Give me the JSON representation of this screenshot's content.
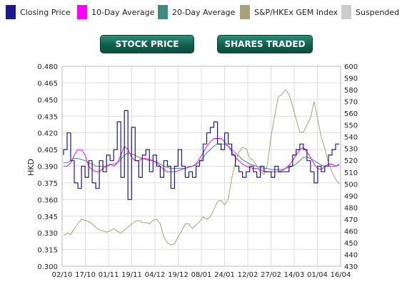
{
  "legend": [
    {
      "label": "Closing Price",
      "color": "#1a1a8c"
    },
    {
      "label": "10-Day Average",
      "color": "#ff00ff"
    },
    {
      "label": "20-Day Average",
      "color": "#3f8a7f"
    },
    {
      "label": "S&P/HKEx GEM Index",
      "color": "#a8a27a"
    },
    {
      "label": "Suspended",
      "color": "#cccccc"
    }
  ],
  "buttons": {
    "stock_price": "STOCK PRICE",
    "shares_traded": "SHARES TRADED"
  },
  "chart_data": {
    "type": "line",
    "ylabel": "HKD",
    "ylim": [
      0.3,
      0.48
    ],
    "y2lim": [
      430,
      600
    ],
    "y_ticks": [
      "0.480",
      "0.465",
      "0.450",
      "0.435",
      "0.420",
      "0.405",
      "0.390",
      "0.375",
      "0.360",
      "0.345",
      "0.330",
      "0.315",
      "0.300"
    ],
    "y2_ticks": [
      "600",
      "590",
      "580",
      "570",
      "560",
      "550",
      "540",
      "530",
      "520",
      "510",
      "500",
      "490",
      "480",
      "470",
      "460",
      "450",
      "440",
      "430"
    ],
    "x_ticks": [
      "02/10",
      "17/10",
      "01/11",
      "19/11",
      "04/12",
      "19/12",
      "08/01",
      "24/01",
      "12/02",
      "27/02",
      "14/03",
      "01/04",
      "16/04"
    ],
    "series": [
      {
        "name": "Closing Price",
        "color": "#1a1a8c",
        "values": [
          0.4,
          0.405,
          0.42,
          0.395,
          0.375,
          0.37,
          0.39,
          0.38,
          0.395,
          0.375,
          0.37,
          0.395,
          0.385,
          0.4,
          0.395,
          0.405,
          0.43,
          0.38,
          0.44,
          0.36,
          0.425,
          0.395,
          0.38,
          0.4,
          0.405,
          0.385,
          0.4,
          0.39,
          0.38,
          0.395,
          0.39,
          0.37,
          0.39,
          0.405,
          0.39,
          0.38,
          0.385,
          0.38,
          0.39,
          0.395,
          0.41,
          0.42,
          0.425,
          0.43,
          0.41,
          0.405,
          0.42,
          0.41,
          0.4,
          0.39,
          0.385,
          0.38,
          0.385,
          0.39,
          0.385,
          0.38,
          0.39,
          0.385,
          0.385,
          0.38,
          0.39,
          0.385,
          0.385,
          0.385,
          0.39,
          0.4,
          0.405,
          0.41,
          0.405,
          0.395,
          0.385,
          0.375,
          0.39,
          0.385,
          0.39,
          0.4,
          0.405,
          0.41
        ]
      },
      {
        "name": "10-Day Average",
        "color": "#ff00ff",
        "values": [
          0.39,
          0.39,
          0.393,
          0.4,
          0.405,
          0.405,
          0.4,
          0.39,
          0.387,
          0.385,
          0.385,
          0.388,
          0.39,
          0.392,
          0.39,
          0.393,
          0.4,
          0.408,
          0.405,
          0.398,
          0.395,
          0.395,
          0.397,
          0.397,
          0.396,
          0.395,
          0.393,
          0.39,
          0.387,
          0.385,
          0.385,
          0.385,
          0.386,
          0.387,
          0.388,
          0.39,
          0.39,
          0.392,
          0.397,
          0.402,
          0.408,
          0.412,
          0.415,
          0.415,
          0.415,
          0.412,
          0.408,
          0.403,
          0.398,
          0.395,
          0.392,
          0.39,
          0.389,
          0.388,
          0.388,
          0.387,
          0.385,
          0.385,
          0.385,
          0.385,
          0.385,
          0.386,
          0.388,
          0.391,
          0.395,
          0.4,
          0.405,
          0.407,
          0.403,
          0.398,
          0.392,
          0.388,
          0.387,
          0.39,
          0.392,
          0.392,
          0.39,
          0.392
        ]
      },
      {
        "name": "20-Day Average",
        "color": "#3f8a7f",
        "values": [
          0.393,
          0.393,
          0.395,
          0.397,
          0.397,
          0.396,
          0.395,
          0.393,
          0.392,
          0.39,
          0.39,
          0.39,
          0.39,
          0.391,
          0.392,
          0.393,
          0.396,
          0.4,
          0.402,
          0.401,
          0.4,
          0.398,
          0.397,
          0.396,
          0.395,
          0.395,
          0.394,
          0.392,
          0.39,
          0.389,
          0.388,
          0.388,
          0.388,
          0.388,
          0.388,
          0.389,
          0.39,
          0.391,
          0.394,
          0.398,
          0.402,
          0.405,
          0.408,
          0.41,
          0.41,
          0.41,
          0.408,
          0.405,
          0.402,
          0.399,
          0.396,
          0.394,
          0.392,
          0.391,
          0.39,
          0.389,
          0.388,
          0.388,
          0.387,
          0.387,
          0.387,
          0.387,
          0.388,
          0.389,
          0.39,
          0.392,
          0.395,
          0.398,
          0.398,
          0.397,
          0.395,
          0.393,
          0.391,
          0.39,
          0.39,
          0.39,
          0.39,
          0.391
        ]
      },
      {
        "name": "S&P/HKEx GEM Index",
        "color": "#a8a27a",
        "axis": "right",
        "values": [
          456,
          458,
          457,
          462,
          466,
          470,
          469,
          468,
          466,
          463,
          461,
          460,
          459,
          460,
          462,
          460,
          458,
          461,
          463,
          466,
          468,
          469,
          467,
          467,
          466,
          469,
          470,
          466,
          455,
          450,
          448,
          449,
          455,
          460,
          466,
          466,
          462,
          465,
          468,
          472,
          470,
          472,
          478,
          485,
          486,
          482,
          487,
          505,
          518,
          527,
          531,
          530,
          522,
          520,
          515,
          510,
          508,
          517,
          541,
          558,
          574,
          576,
          580,
          576,
          566,
          555,
          544,
          544,
          550,
          556,
          570,
          555,
          540,
          530,
          518,
          510,
          504,
          500
        ]
      }
    ]
  }
}
